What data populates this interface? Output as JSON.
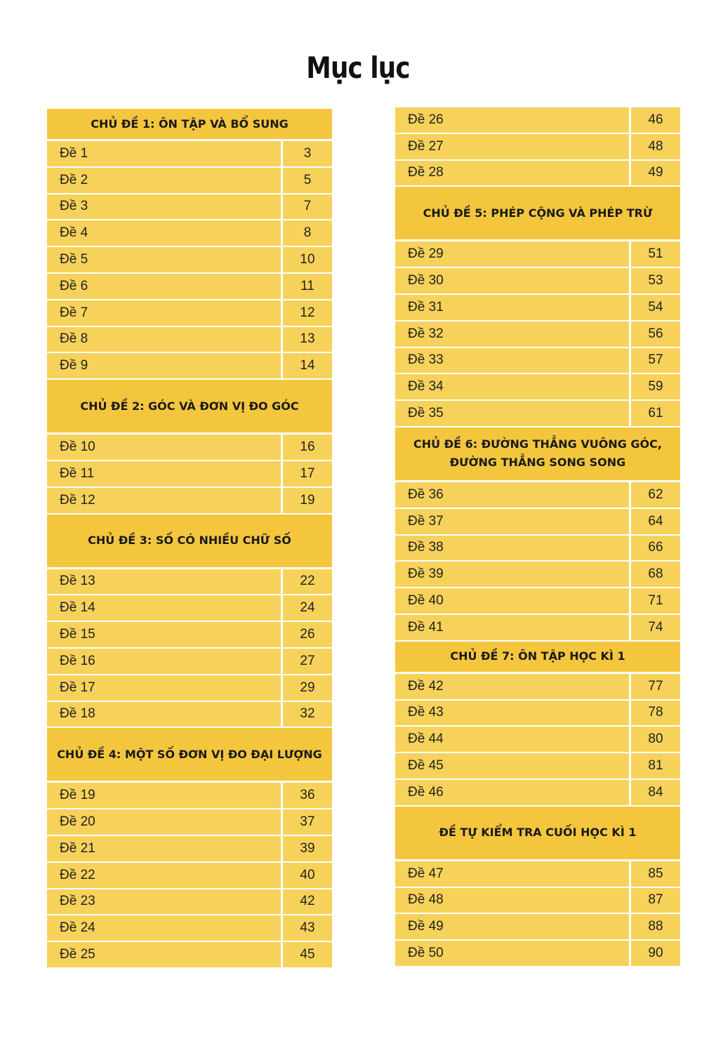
{
  "title": "Mục lục",
  "columns": [
    {
      "items": [
        {
          "header": "CHỦ ĐỀ 1: ÔN TẬP VÀ BỔ SUNG"
        },
        {
          "name": "Đề 1",
          "page": "3"
        },
        {
          "name": "Đề 2",
          "page": "5"
        },
        {
          "name": "Đề 3",
          "page": "7"
        },
        {
          "name": "Đề 4",
          "page": "8"
        },
        {
          "name": "Đề 5",
          "page": "10"
        },
        {
          "name": "Đề 6",
          "page": "11"
        },
        {
          "name": "Đề 7",
          "page": "12"
        },
        {
          "name": "Đề 8",
          "page": "13"
        },
        {
          "name": "Đề 9",
          "page": "14"
        },
        {
          "header": "CHỦ ĐỀ 2: GÓC VÀ ĐƠN VỊ ĐO GÓC"
        },
        {
          "name": "Đề 10",
          "page": "16"
        },
        {
          "name": "Đề 11",
          "page": "17"
        },
        {
          "name": "Đề 12",
          "page": "19"
        },
        {
          "header": "CHỦ ĐỀ 3: SỐ CÓ NHIỀU CHỮ SỐ"
        },
        {
          "name": "Đề 13",
          "page": "22"
        },
        {
          "name": "Đề 14",
          "page": "24"
        },
        {
          "name": "Đề 15",
          "page": "26"
        },
        {
          "name": "Đề 16",
          "page": "27"
        },
        {
          "name": "Đề 17",
          "page": "29"
        },
        {
          "name": "Đề 18",
          "page": "32"
        },
        {
          "header": "CHỦ ĐỀ 4: MỘT SỐ ĐƠN VỊ ĐO ĐẠI LƯỢNG"
        },
        {
          "name": "Đề 19",
          "page": "36"
        },
        {
          "name": "Đề 20",
          "page": "37"
        },
        {
          "name": "Đề 21",
          "page": "39"
        },
        {
          "name": "Đề 22",
          "page": "40"
        },
        {
          "name": "Đề 23",
          "page": "42"
        },
        {
          "name": "Đề 24",
          "page": "43"
        },
        {
          "name": "Đề 25",
          "page": "45"
        }
      ]
    },
    {
      "items": [
        {
          "name": "Đề 26",
          "page": "46"
        },
        {
          "name": "Đề 27",
          "page": "48"
        },
        {
          "name": "Đề 28",
          "page": "49"
        },
        {
          "header": "CHỦ ĐỀ 5: PHÉP CỘNG VÀ PHÉP TRỪ"
        },
        {
          "name": "Đề 29",
          "page": "51"
        },
        {
          "name": "Đề 30",
          "page": "53"
        },
        {
          "name": "Đề 31",
          "page": "54"
        },
        {
          "name": "Đề 32",
          "page": "56"
        },
        {
          "name": "Đề 33",
          "page": "57"
        },
        {
          "name": "Đề 34",
          "page": "59"
        },
        {
          "name": "Đề 35",
          "page": "61"
        },
        {
          "header": "CHỦ ĐỀ 6: ĐƯỜNG THẲNG VUÔNG GÓC,\nĐƯỜNG THẲNG SONG SONG"
        },
        {
          "name": "Đề 36",
          "page": "62"
        },
        {
          "name": "Đề 37",
          "page": "64"
        },
        {
          "name": "Đề 38",
          "page": "66"
        },
        {
          "name": "Đề 39",
          "page": "68"
        },
        {
          "name": "Đề 40",
          "page": "71"
        },
        {
          "name": "Đề 41",
          "page": "74"
        },
        {
          "header": "CHỦ ĐỀ 7: ÔN TẬP HỌC KÌ 1"
        },
        {
          "name": "Đề 42",
          "page": "77"
        },
        {
          "name": "Đề 43",
          "page": "78"
        },
        {
          "name": "Đề 44",
          "page": "80"
        },
        {
          "name": "Đề 45",
          "page": "81"
        },
        {
          "name": "Đề 46",
          "page": "84"
        },
        {
          "header": "ĐỀ TỰ KIỂM TRA CUỐI HỌC KÌ 1"
        },
        {
          "name": "Đề 47",
          "page": "85"
        },
        {
          "name": "Đề 48",
          "page": "87"
        },
        {
          "name": "Đề 49",
          "page": "88"
        },
        {
          "name": "Đề 50",
          "page": "90"
        }
      ]
    }
  ],
  "colors": {
    "header_bg": "#f4c63e",
    "row_bg": "#f7d25a"
  }
}
